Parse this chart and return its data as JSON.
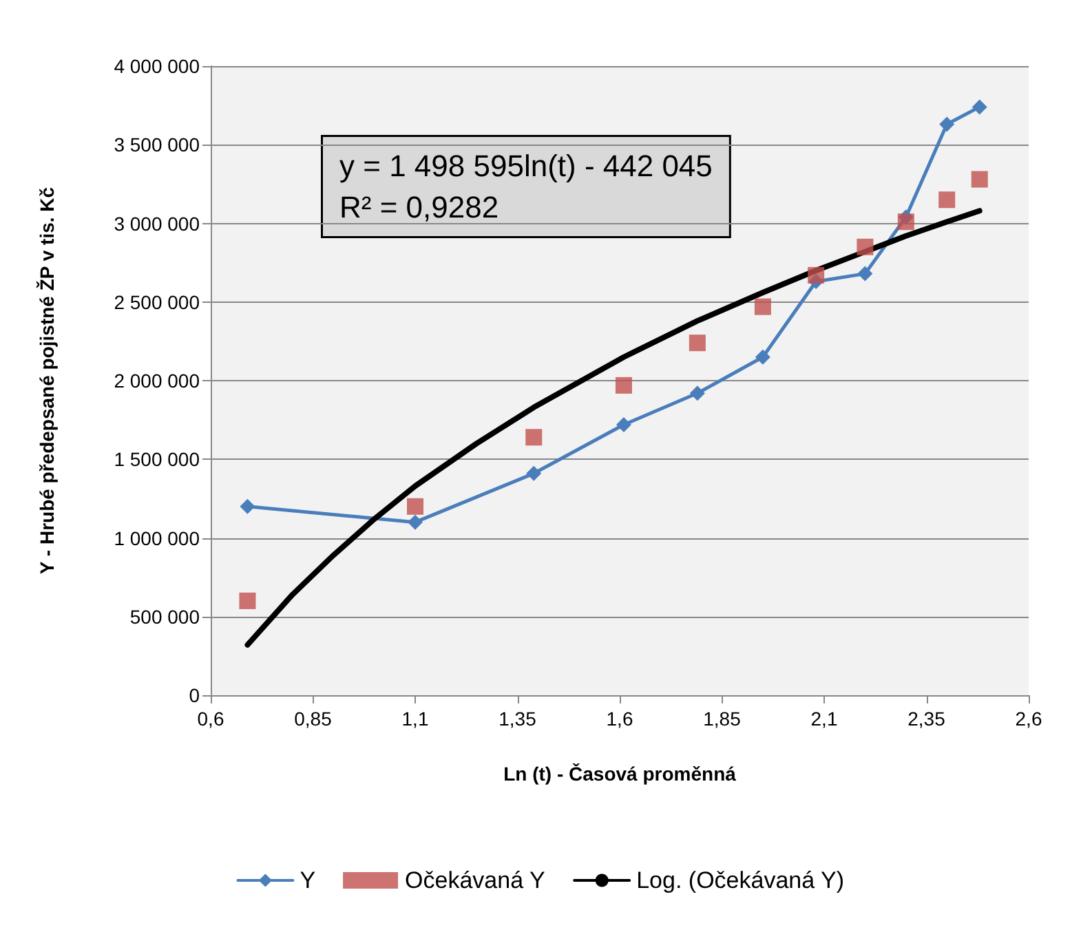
{
  "chart_data": {
    "type": "line",
    "xlabel": "Ln (t) - Časová proměnná",
    "ylabel": "Y - Hrubé předepsané pojistné ŽP v tis. Kč",
    "x": [
      0.69,
      1.1,
      1.39,
      1.61,
      1.79,
      1.95,
      2.08,
      2.2,
      2.3,
      2.4,
      2.48
    ],
    "series": [
      {
        "name": "Y",
        "color": "#4a7ebb",
        "marker": "diamond",
        "values": [
          1200000,
          1100000,
          1410000,
          1720000,
          1920000,
          2150000,
          2630000,
          2680000,
          3040000,
          3630000,
          3740000
        ]
      },
      {
        "name": "Očekávaná Y",
        "type": "scatter",
        "color": "#c0504d",
        "marker": "square",
        "values": [
          600000,
          1200000,
          1640000,
          1970000,
          2240000,
          2470000,
          2670000,
          2850000,
          3010000,
          3150000,
          3280000
        ]
      },
      {
        "name": "Log. (Očekávaná Y)",
        "color": "#000000",
        "marker": "none",
        "x": [
          0.69,
          0.8,
          0.9,
          1.0,
          1.1,
          1.25,
          1.39,
          1.61,
          1.79,
          1.95,
          2.08,
          2.2,
          2.3,
          2.4,
          2.48
        ],
        "values": [
          320000,
          640000,
          890000,
          1120000,
          1330000,
          1600000,
          1830000,
          2150000,
          2380000,
          2560000,
          2700000,
          2820000,
          2920000,
          3010000,
          3080000
        ]
      }
    ],
    "xlim": [
      0.6,
      2.6
    ],
    "xticks": [
      {
        "value": 0.6,
        "label": "0,6"
      },
      {
        "value": 0.85,
        "label": "0,85"
      },
      {
        "value": 1.1,
        "label": "1,1"
      },
      {
        "value": 1.35,
        "label": "1,35"
      },
      {
        "value": 1.6,
        "label": "1,6"
      },
      {
        "value": 1.85,
        "label": "1,85"
      },
      {
        "value": 2.1,
        "label": "2,1"
      },
      {
        "value": 2.35,
        "label": "2,35"
      },
      {
        "value": 2.6,
        "label": "2,6"
      }
    ],
    "ylim": [
      0,
      4000000
    ],
    "yticks": [
      0,
      {
        "value": 500000,
        "label": "500 000"
      },
      {
        "value": 1000000,
        "label": "1 000 000"
      },
      {
        "value": 1500000,
        "label": "1 500 000"
      },
      {
        "value": 2000000,
        "label": "2 000 000"
      },
      {
        "value": 2500000,
        "label": "2 500 000"
      },
      {
        "value": 3000000,
        "label": "3 000 000"
      },
      {
        "value": 3500000,
        "label": "3 500 000"
      },
      {
        "value": 4000000,
        "label": "4 000 000"
      }
    ],
    "annotations": [
      "y = 1 498 595ln(t) - 442 045\nR² = 0,9282"
    ],
    "grid": "y",
    "legend": "bottom"
  }
}
